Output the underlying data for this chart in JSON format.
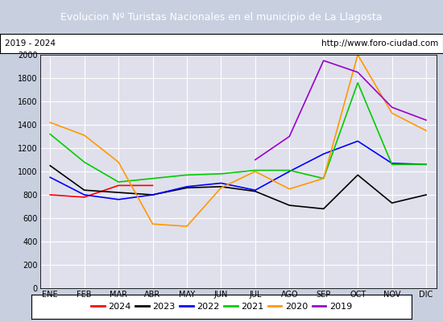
{
  "title": "Evolucion Nº Turistas Nacionales en el municipio de La Llagosta",
  "subtitle_left": "2019 - 2024",
  "subtitle_right": "http://www.foro-ciudad.com",
  "title_bg_color": "#4472c4",
  "title_text_color": "#ffffff",
  "plot_bg_color": "#e0e0ec",
  "fig_bg_color": "#c8d0e0",
  "months": [
    "ENE",
    "FEB",
    "MAR",
    "ABR",
    "MAY",
    "JUN",
    "JUL",
    "AGO",
    "SEP",
    "OCT",
    "NOV",
    "DIC"
  ],
  "ylim": [
    0,
    2000
  ],
  "yticks": [
    0,
    200,
    400,
    600,
    800,
    1000,
    1200,
    1400,
    1600,
    1800,
    2000
  ],
  "series": {
    "2024": {
      "color": "#ff0000",
      "data": [
        800,
        780,
        880,
        880,
        null,
        null,
        null,
        null,
        null,
        null,
        null,
        null
      ]
    },
    "2023": {
      "color": "#000000",
      "data": [
        1050,
        840,
        820,
        800,
        860,
        870,
        830,
        710,
        680,
        970,
        730,
        800
      ]
    },
    "2022": {
      "color": "#0000ff",
      "data": [
        950,
        800,
        760,
        800,
        870,
        900,
        840,
        1000,
        1150,
        1260,
        1070,
        1060
      ]
    },
    "2021": {
      "color": "#00cc00",
      "data": [
        1320,
        1080,
        910,
        940,
        970,
        980,
        1010,
        1010,
        940,
        1760,
        1060,
        1060
      ]
    },
    "2020": {
      "color": "#ff9900",
      "data": [
        1420,
        1310,
        1080,
        550,
        530,
        860,
        1000,
        850,
        940,
        2000,
        1500,
        1350
      ]
    },
    "2019": {
      "color": "#9900cc",
      "data": [
        null,
        null,
        null,
        null,
        null,
        null,
        1100,
        1300,
        1950,
        1850,
        1550,
        1440
      ]
    }
  },
  "legend_order": [
    "2024",
    "2023",
    "2022",
    "2021",
    "2020",
    "2019"
  ],
  "grid_color": "#ffffff",
  "tick_font_size": 7,
  "legend_font_size": 8,
  "title_fontsize": 9
}
